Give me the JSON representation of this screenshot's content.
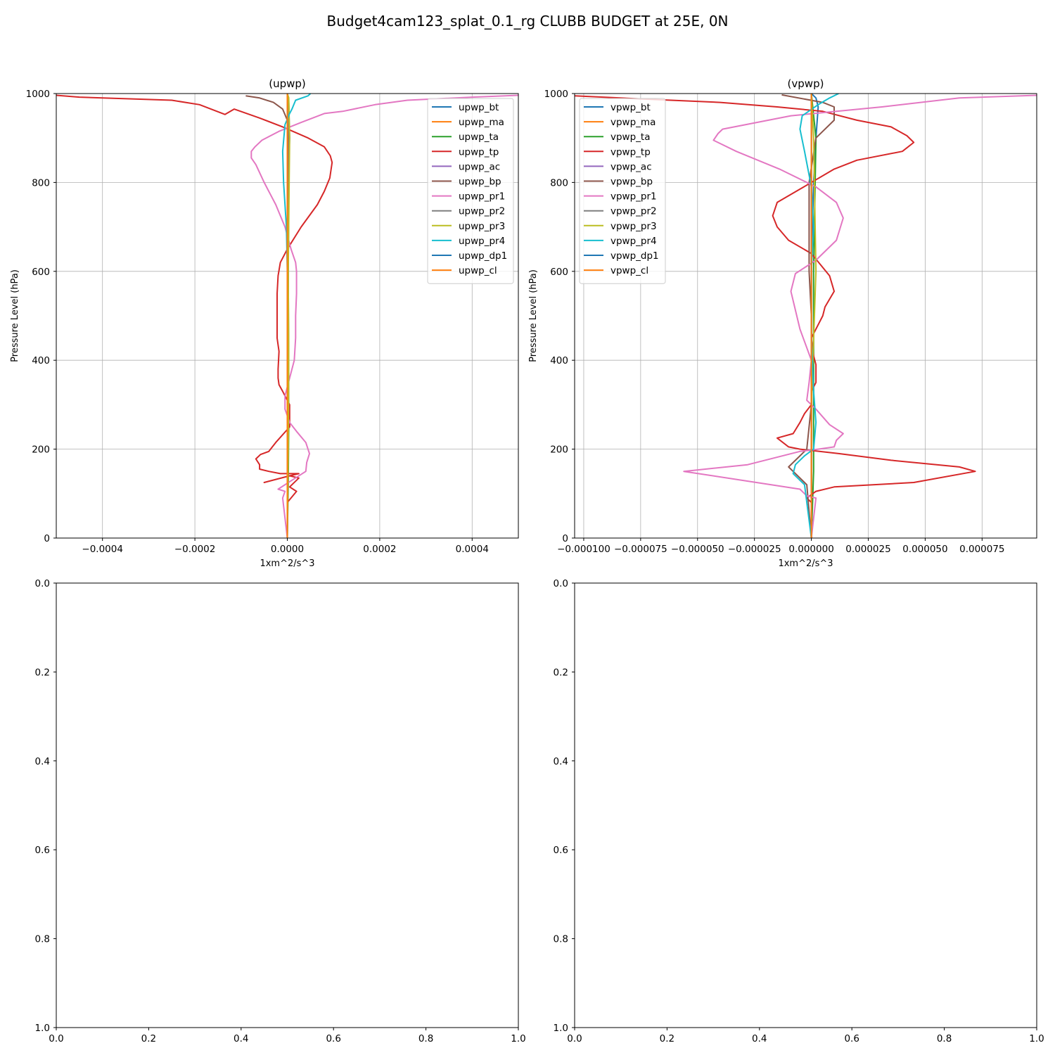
{
  "figure": {
    "title": "Budget4cam123_splat_0.1_rg CLUBB BUDGET at 25E, 0N"
  },
  "chart_data": [
    {
      "type": "line",
      "title": "(upwp)",
      "xlabel": "1xm^2/s^3",
      "ylabel": "Pressure Level (hPa)",
      "xlim": [
        -0.0005,
        0.0005
      ],
      "ylim": [
        1000,
        0
      ],
      "xticks": [
        -0.0004,
        -0.0002,
        0.0,
        0.0002,
        0.0004
      ],
      "xticklabels": [
        "−0.0004",
        "−0.0002",
        "0.0000",
        "0.0002",
        "0.0004"
      ],
      "yticks": [
        0,
        200,
        400,
        600,
        800,
        1000
      ],
      "yticklabels": [
        "0",
        "200",
        "400",
        "600",
        "800",
        "1000"
      ],
      "grid": true,
      "legend": "upper right",
      "series": [
        {
          "name": "upwp_bt",
          "color": "#1f77b4",
          "x": [
            0,
            0,
            2e-06,
            5e-06,
            3e-06,
            0
          ],
          "y": [
            0,
            600,
            800,
            900,
            980,
            1000
          ]
        },
        {
          "name": "upwp_ma",
          "color": "#ff7f0e",
          "x": [
            0,
            0,
            1e-06,
            1e-06,
            0
          ],
          "y": [
            0,
            600,
            900,
            990,
            1000
          ]
        },
        {
          "name": "upwp_ta",
          "color": "#2ca02c",
          "x": [
            0,
            2e-06,
            3e-06,
            2e-06,
            4e-06,
            3e-06,
            0
          ],
          "y": [
            0,
            120,
            250,
            600,
            900,
            990,
            1000
          ]
        },
        {
          "name": "upwp_tp",
          "color": "#d62728",
          "x": [
            0,
            0,
            2e-05,
            5e-06,
            2.5e-05,
            5e-06,
            -5e-05,
            5e-06,
            2.5e-05,
            -1.5e-05,
            -4e-05,
            -6e-05,
            -6e-05,
            -6.8e-05,
            -5.8e-05,
            -4e-05,
            -2.5e-05,
            5e-06,
            5e-06,
            -1e-05,
            -1.8e-05,
            -2e-05,
            -2e-05,
            -1.8e-05,
            -2.2e-05,
            -2.2e-05,
            -2e-05,
            -1.5e-05,
            0,
            3e-05,
            6.5e-05,
            8e-05,
            9.2e-05,
            9.7e-05,
            9.3e-05,
            8e-05,
            4.5e-05,
            -1e-05,
            -6e-05,
            -0.000115,
            -0.000135,
            -0.00019,
            -0.00025,
            -0.00045,
            -0.0005
          ],
          "y": [
            0,
            80,
            105,
            115,
            135,
            140,
            125,
            140,
            145,
            145,
            150,
            155,
            165,
            178,
            188,
            195,
            215,
            250,
            300,
            330,
            345,
            360,
            380,
            420,
            450,
            550,
            590,
            620,
            650,
            700,
            750,
            780,
            810,
            845,
            860,
            880,
            900,
            925,
            945,
            965,
            953,
            975,
            985,
            992,
            996
          ]
        },
        {
          "name": "upwp_ac",
          "color": "#9467bd",
          "x": [
            0,
            0,
            0
          ],
          "y": [
            0,
            500,
            1000
          ]
        },
        {
          "name": "upwp_bp",
          "color": "#8c564b",
          "x": [
            0,
            0,
            2e-06,
            0,
            -1e-05,
            -3e-05,
            -6e-05,
            -9e-05
          ],
          "y": [
            0,
            600,
            900,
            940,
            965,
            980,
            990,
            995
          ]
        },
        {
          "name": "upwp_pr1",
          "color": "#e377c2",
          "x": [
            0,
            -1e-05,
            -5e-06,
            -2e-05,
            1e-05,
            4e-05,
            4.2e-05,
            4.8e-05,
            4e-05,
            2e-05,
            5e-06,
            -5e-06,
            -5e-06,
            5e-06,
            1.5e-05,
            1.8e-05,
            1.8e-05,
            2e-05,
            2e-05,
            1.8e-05,
            8e-06,
            -5e-06,
            -2.5e-05,
            -5e-05,
            -6.8e-05,
            -7.8e-05,
            -7.8e-05,
            -7e-05,
            -5.5e-05,
            -1.8e-05,
            3e-05,
            8e-05,
            0.00012,
            0.00019,
            0.00026,
            0.0004,
            0.0005
          ],
          "y": [
            0,
            90,
            105,
            110,
            130,
            150,
            170,
            190,
            215,
            240,
            260,
            290,
            320,
            360,
            400,
            450,
            500,
            550,
            600,
            620,
            650,
            700,
            750,
            800,
            840,
            855,
            870,
            880,
            895,
            915,
            935,
            955,
            960,
            975,
            985,
            992,
            996
          ]
        },
        {
          "name": "upwp_pr2",
          "color": "#7f7f7f",
          "x": [
            0,
            2e-06,
            3e-06,
            2e-06,
            4e-06,
            2e-06,
            0
          ],
          "y": [
            0,
            200,
            400,
            600,
            900,
            990,
            1000
          ]
        },
        {
          "name": "upwp_pr3",
          "color": "#bcbd22",
          "x": [
            0,
            2e-06,
            3e-06,
            2e-06,
            5e-06,
            3e-06,
            0
          ],
          "y": [
            0,
            200,
            400,
            600,
            900,
            990,
            1000
          ]
        },
        {
          "name": "upwp_pr4",
          "color": "#17becf",
          "x": [
            0,
            0,
            0,
            -2e-06,
            -8e-06,
            -1e-05,
            -5e-06,
            5e-06,
            1e-05,
            1.8e-05,
            4.5e-05,
            5e-05
          ],
          "y": [
            0,
            300,
            600,
            700,
            800,
            870,
            930,
            955,
            965,
            985,
            995,
            1000
          ]
        },
        {
          "name": "upwp_dp1",
          "color": "#1f77b4",
          "x": [
            0,
            0,
            0,
            0
          ],
          "y": [
            0,
            500,
            900,
            1000
          ]
        },
        {
          "name": "upwp_cl",
          "color": "#ff7f0e",
          "x": [
            0,
            0,
            0,
            0
          ],
          "y": [
            0,
            500,
            900,
            1000
          ]
        }
      ]
    },
    {
      "type": "line",
      "title": "(vpwp)",
      "xlabel": "1xm^2/s^3",
      "ylabel": "Pressure Level (hPa)",
      "xlim": [
        -0.000104,
        9.9e-05
      ],
      "ylim": [
        1000,
        0
      ],
      "xticks": [
        -0.0001,
        -7.5e-05,
        -5e-05,
        -2.5e-05,
        0.0,
        2.5e-05,
        5e-05,
        7.5e-05
      ],
      "xticklabels": [
        "−0.000100",
        "−0.000075",
        "−0.000050",
        "−0.000025",
        "0.000000",
        "0.000025",
        "0.000050",
        "0.000075"
      ],
      "yticks": [
        0,
        200,
        400,
        600,
        800,
        1000
      ],
      "yticklabels": [
        "0",
        "200",
        "400",
        "600",
        "800",
        "1000"
      ],
      "grid": true,
      "legend": "upper left",
      "series": [
        {
          "name": "vpwp_bt",
          "color": "#1f77b4",
          "x": [
            0,
            0,
            1e-06,
            2e-06,
            3e-06,
            2e-06,
            0
          ],
          "y": [
            0,
            600,
            800,
            900,
            970,
            990,
            1000
          ]
        },
        {
          "name": "vpwp_ma",
          "color": "#ff7f0e",
          "x": [
            0,
            0,
            0,
            0,
            0
          ],
          "y": [
            0,
            500,
            900,
            990,
            1000
          ]
        },
        {
          "name": "vpwp_ta",
          "color": "#2ca02c",
          "x": [
            0,
            1e-06,
            1e-06,
            1e-06,
            2e-06,
            0
          ],
          "y": [
            0,
            150,
            400,
            600,
            900,
            1000
          ]
        },
        {
          "name": "vpwp_tp",
          "color": "#d62728",
          "x": [
            0,
            0,
            -2e-06,
            2e-06,
            1e-05,
            4.5e-05,
            7.2e-05,
            6.5e-05,
            3.5e-05,
            1.2e-05,
            -5e-06,
            -1e-05,
            -1.5e-05,
            -8e-06,
            -5e-06,
            -3e-06,
            0,
            0,
            2e-06,
            2e-06,
            1e-06,
            0,
            5e-06,
            6e-06,
            1e-05,
            8e-06,
            0,
            -1e-05,
            -1.5e-05,
            -1.7e-05,
            -1.5e-05,
            -5e-06,
            0,
            1e-05,
            2e-05,
            4e-05,
            4.5e-05,
            4.2e-05,
            3.5e-05,
            2e-05,
            5e-06,
            -1.5e-05,
            -4e-05,
            -7.5e-05,
            -0.000104
          ],
          "y": [
            0,
            80,
            90,
            105,
            115,
            125,
            150,
            160,
            175,
            190,
            200,
            205,
            225,
            235,
            260,
            280,
            300,
            330,
            350,
            390,
            410,
            450,
            500,
            520,
            555,
            590,
            640,
            670,
            700,
            725,
            755,
            785,
            800,
            830,
            850,
            870,
            890,
            905,
            925,
            940,
            960,
            970,
            980,
            988,
            995
          ]
        },
        {
          "name": "vpwp_ac",
          "color": "#9467bd",
          "x": [
            0,
            0,
            0
          ],
          "y": [
            0,
            500,
            1000
          ]
        },
        {
          "name": "vpwp_bp",
          "color": "#8c564b",
          "x": [
            0,
            -2e-06,
            -1e-05,
            -5e-06,
            -2e-06,
            0,
            0,
            -1e-06,
            -1e-06,
            2e-06,
            1e-05,
            1e-05,
            5e-06,
            -1.3e-05
          ],
          "y": [
            0,
            120,
            160,
            185,
            200,
            300,
            500,
            600,
            800,
            900,
            940,
            970,
            980,
            997
          ]
        },
        {
          "name": "vpwp_pr1",
          "color": "#e377c2",
          "x": [
            0,
            2e-06,
            -2e-06,
            -5e-06,
            -5.6e-05,
            -2.8e-05,
            -5e-06,
            3e-06,
            1e-05,
            1.1e-05,
            1.4e-05,
            8e-06,
            2e-06,
            -2e-06,
            -1e-06,
            0,
            -5e-06,
            -9e-06,
            -7e-06,
            2e-06,
            1.1e-05,
            1.4e-05,
            1.1e-05,
            2e-06,
            -1.4e-05,
            -3.3e-05,
            -4.3e-05,
            -4.1e-05,
            -3.9e-05,
            -9e-06,
            3.1e-05,
            6.5e-05,
            9.9e-05
          ],
          "y": [
            0,
            90,
            95,
            110,
            150,
            165,
            195,
            200,
            205,
            220,
            235,
            255,
            290,
            310,
            350,
            400,
            470,
            555,
            595,
            625,
            670,
            720,
            755,
            790,
            830,
            870,
            895,
            910,
            920,
            950,
            970,
            990,
            996
          ]
        },
        {
          "name": "vpwp_pr2",
          "color": "#7f7f7f",
          "x": [
            0,
            0,
            0,
            0,
            0
          ],
          "y": [
            0,
            400,
            800,
            990,
            1000
          ]
        },
        {
          "name": "vpwp_pr3",
          "color": "#bcbd22",
          "x": [
            0,
            0,
            2e-06,
            1e-06,
            0
          ],
          "y": [
            0,
            300,
            600,
            900,
            1000
          ]
        },
        {
          "name": "vpwp_pr4",
          "color": "#17becf",
          "x": [
            0,
            -3e-06,
            -8e-06,
            -7e-06,
            -3e-06,
            1e-06,
            2e-06,
            1e-06,
            0,
            0,
            1e-06,
            0,
            -3e-06,
            -5e-06,
            -4e-06,
            3e-06,
            8e-06,
            1.2e-05
          ],
          "y": [
            0,
            120,
            145,
            165,
            185,
            200,
            260,
            330,
            450,
            600,
            700,
            790,
            870,
            920,
            950,
            975,
            990,
            1000
          ]
        },
        {
          "name": "vpwp_dp1",
          "color": "#1f77b4",
          "x": [
            0,
            0,
            0,
            0
          ],
          "y": [
            0,
            500,
            900,
            1000
          ]
        },
        {
          "name": "vpwp_cl",
          "color": "#ff7f0e",
          "x": [
            0,
            0,
            0,
            0
          ],
          "y": [
            0,
            500,
            900,
            1000
          ]
        }
      ]
    },
    {
      "type": "line",
      "title": "",
      "xlim": [
        0,
        1
      ],
      "ylim": [
        0,
        1
      ],
      "xticks": [
        0,
        0.2,
        0.4,
        0.6,
        0.8,
        1
      ],
      "xticklabels": [
        "0.0",
        "0.2",
        "0.4",
        "0.6",
        "0.8",
        "1.0"
      ],
      "yticks": [
        0,
        0.2,
        0.4,
        0.6,
        0.8,
        1
      ],
      "yticklabels": [
        "0.0",
        "0.2",
        "0.4",
        "0.6",
        "0.8",
        "1.0"
      ],
      "grid": false,
      "series": []
    },
    {
      "type": "line",
      "title": "",
      "xlim": [
        0,
        1
      ],
      "ylim": [
        0,
        1
      ],
      "xticks": [
        0,
        0.2,
        0.4,
        0.6,
        0.8,
        1
      ],
      "xticklabels": [
        "0.0",
        "0.2",
        "0.4",
        "0.6",
        "0.8",
        "1.0"
      ],
      "yticks": [
        0,
        0.2,
        0.4,
        0.6,
        0.8,
        1
      ],
      "yticklabels": [
        "0.0",
        "0.2",
        "0.4",
        "0.6",
        "0.8",
        "1.0"
      ],
      "grid": false,
      "series": []
    }
  ]
}
